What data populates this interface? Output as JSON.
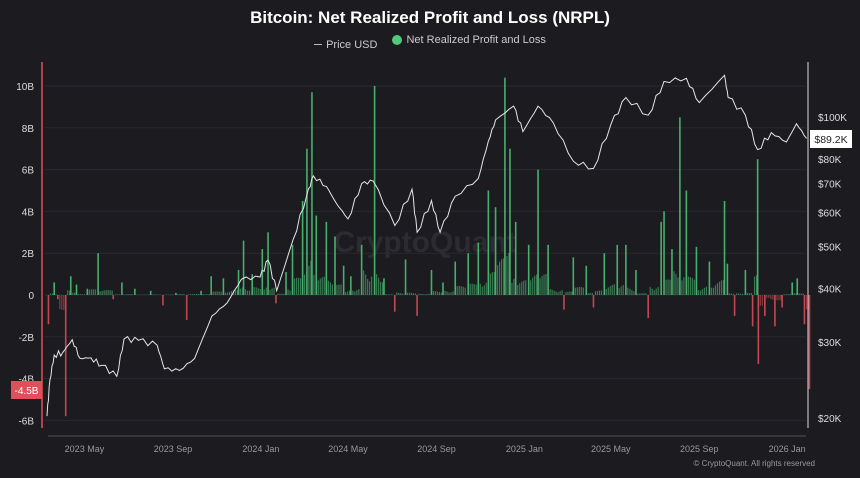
{
  "chart_data": {
    "type": "bar+line",
    "title": "Bitcoin: Net Realized Profit and Loss (NRPL)",
    "legend": [
      {
        "name": "Price USD",
        "color": "#d0d0d0",
        "marker": "line"
      },
      {
        "name": "Net Realized Profit and Loss",
        "color": "#4fc97a",
        "marker": "dot"
      }
    ],
    "legend_position": "top-center",
    "colors": {
      "profit": "#4fc97a",
      "loss": "#e0505a",
      "price": "#e6e6e6",
      "background": "#1c1b20"
    },
    "x_ticks": [
      "2023 May",
      "2023 Sep",
      "2024 Jan",
      "2024 May",
      "2024 Sep",
      "2025 Jan",
      "2025 May",
      "2025 Sep",
      "2026 Jan"
    ],
    "x_tick_dates": [
      "2023-05-01",
      "2023-09-01",
      "2024-01-01",
      "2024-05-01",
      "2024-09-01",
      "2025-01-01",
      "2025-05-01",
      "2025-09-01",
      "2026-01-01"
    ],
    "x_range": [
      "2023-03-10",
      "2026-02-05"
    ],
    "left_axis": {
      "ticks": [
        "10B",
        "8B",
        "6B",
        "4B",
        "2B",
        "0",
        "-2B",
        "-4B",
        "-6B"
      ],
      "tick_values": [
        10,
        8,
        6,
        4,
        2,
        0,
        -2,
        -4,
        -6
      ],
      "range": [
        -6.4,
        10.8
      ],
      "unit": "B USD"
    },
    "right_axis": {
      "scale": "log",
      "ticks": [
        "$100K",
        "$80K",
        "$70K",
        "$60K",
        "$50K",
        "$40K",
        "$30K",
        "$20K"
      ],
      "tick_values": [
        100000,
        80000,
        70000,
        60000,
        50000,
        40000,
        30000,
        20000
      ],
      "range": [
        19000,
        125000
      ]
    },
    "current_price_label": "$89.2K",
    "current_nrpl_label": "-4.5B",
    "grid": true,
    "watermark": "CryptoQuant",
    "price": [
      [
        "2023-03-10",
        20200
      ],
      [
        "2023-03-14",
        24500
      ],
      [
        "2023-03-20",
        28000
      ],
      [
        "2023-04-01",
        28400
      ],
      [
        "2023-04-14",
        30400
      ],
      [
        "2023-04-25",
        27500
      ],
      [
        "2023-05-10",
        27600
      ],
      [
        "2023-05-25",
        26500
      ],
      [
        "2023-06-15",
        25000
      ],
      [
        "2023-06-25",
        30500
      ],
      [
        "2023-07-15",
        30300
      ],
      [
        "2023-08-10",
        29500
      ],
      [
        "2023-08-20",
        26000
      ],
      [
        "2023-09-10",
        25800
      ],
      [
        "2023-10-01",
        27500
      ],
      [
        "2023-10-25",
        34500
      ],
      [
        "2023-11-15",
        37000
      ],
      [
        "2023-12-05",
        42000
      ],
      [
        "2023-12-31",
        42500
      ],
      [
        "2024-01-11",
        46500
      ],
      [
        "2024-01-23",
        39500
      ],
      [
        "2024-02-15",
        52000
      ],
      [
        "2024-03-05",
        66000
      ],
      [
        "2024-03-14",
        73000
      ],
      [
        "2024-04-01",
        69000
      ],
      [
        "2024-04-15",
        63000
      ],
      [
        "2024-05-01",
        58000
      ],
      [
        "2024-05-20",
        70000
      ],
      [
        "2024-06-05",
        71000
      ],
      [
        "2024-07-05",
        56000
      ],
      [
        "2024-07-29",
        68000
      ],
      [
        "2024-08-05",
        54000
      ],
      [
        "2024-08-25",
        64000
      ],
      [
        "2024-09-06",
        54000
      ],
      [
        "2024-09-27",
        65500
      ],
      [
        "2024-10-29",
        72000
      ],
      [
        "2024-11-12",
        88000
      ],
      [
        "2024-11-22",
        98500
      ],
      [
        "2024-12-17",
        106000
      ],
      [
        "2024-12-30",
        92500
      ],
      [
        "2025-01-20",
        106000
      ],
      [
        "2025-02-10",
        97000
      ],
      [
        "2025-03-10",
        79000
      ],
      [
        "2025-04-07",
        76000
      ],
      [
        "2025-05-01",
        96000
      ],
      [
        "2025-05-22",
        111000
      ],
      [
        "2025-06-22",
        101000
      ],
      [
        "2025-07-14",
        121000
      ],
      [
        "2025-08-14",
        123000
      ],
      [
        "2025-09-01",
        108000
      ],
      [
        "2025-10-06",
        125000
      ],
      [
        "2025-10-11",
        111000
      ],
      [
        "2025-11-04",
        101000
      ],
      [
        "2025-11-21",
        84000
      ],
      [
        "2025-12-10",
        92000
      ],
      [
        "2025-12-31",
        87500
      ],
      [
        "2026-01-14",
        96500
      ],
      [
        "2026-01-28",
        89200
      ]
    ],
    "nrpl": [
      [
        "2023-03-12",
        -1.4
      ],
      [
        "2023-03-20",
        0.6
      ],
      [
        "2023-03-25",
        -0.2
      ],
      [
        "2023-04-05",
        -5.8
      ],
      [
        "2023-04-12",
        0.9
      ],
      [
        "2023-04-20",
        0.5
      ],
      [
        "2023-05-05",
        0.3
      ],
      [
        "2023-05-20",
        2.0
      ],
      [
        "2023-06-10",
        -0.2
      ],
      [
        "2023-06-22",
        0.6
      ],
      [
        "2023-07-10",
        0.3
      ],
      [
        "2023-08-01",
        0.2
      ],
      [
        "2023-08-18",
        -0.5
      ],
      [
        "2023-09-05",
        0.1
      ],
      [
        "2023-09-20",
        -1.2
      ],
      [
        "2023-10-10",
        0.2
      ],
      [
        "2023-10-24",
        0.9
      ],
      [
        "2023-11-10",
        0.8
      ],
      [
        "2023-12-01",
        1.2
      ],
      [
        "2023-12-08",
        2.6
      ],
      [
        "2023-12-20",
        1.0
      ],
      [
        "2024-01-03",
        2.2
      ],
      [
        "2024-01-11",
        3.0
      ],
      [
        "2024-01-22",
        -0.4
      ],
      [
        "2024-02-05",
        1.1
      ],
      [
        "2024-02-14",
        2.4
      ],
      [
        "2024-02-28",
        4.5
      ],
      [
        "2024-03-05",
        7.0
      ],
      [
        "2024-03-12",
        9.7
      ],
      [
        "2024-03-18",
        3.8
      ],
      [
        "2024-04-01",
        3.5
      ],
      [
        "2024-04-13",
        2.8
      ],
      [
        "2024-04-25",
        1.4
      ],
      [
        "2024-05-05",
        0.9
      ],
      [
        "2024-05-20",
        2.4
      ],
      [
        "2024-06-07",
        10.0
      ],
      [
        "2024-06-20",
        0.8
      ],
      [
        "2024-07-05",
        -0.8
      ],
      [
        "2024-07-20",
        1.7
      ],
      [
        "2024-08-05",
        -1.0
      ],
      [
        "2024-08-25",
        1.2
      ],
      [
        "2024-09-10",
        0.6
      ],
      [
        "2024-09-27",
        1.6
      ],
      [
        "2024-10-15",
        2.0
      ],
      [
        "2024-10-29",
        2.5
      ],
      [
        "2024-11-12",
        5.0
      ],
      [
        "2024-11-22",
        4.2
      ],
      [
        "2024-12-05",
        10.4
      ],
      [
        "2024-12-12",
        7.0
      ],
      [
        "2024-12-20",
        3.5
      ],
      [
        "2025-01-07",
        2.4
      ],
      [
        "2025-01-20",
        6.0
      ],
      [
        "2025-02-03",
        2.4
      ],
      [
        "2025-02-25",
        -0.7
      ],
      [
        "2025-03-10",
        1.8
      ],
      [
        "2025-03-28",
        1.4
      ],
      [
        "2025-04-07",
        -0.6
      ],
      [
        "2025-04-22",
        2.0
      ],
      [
        "2025-05-10",
        2.4
      ],
      [
        "2025-05-22",
        2.4
      ],
      [
        "2025-06-05",
        1.2
      ],
      [
        "2025-06-22",
        -1.1
      ],
      [
        "2025-07-10",
        3.5
      ],
      [
        "2025-07-14",
        4.0
      ],
      [
        "2025-07-25",
        2.2
      ],
      [
        "2025-08-05",
        8.5
      ],
      [
        "2025-08-14",
        5.0
      ],
      [
        "2025-08-28",
        2.3
      ],
      [
        "2025-09-15",
        1.6
      ],
      [
        "2025-10-06",
        4.5
      ],
      [
        "2025-10-10",
        1.5
      ],
      [
        "2025-10-20",
        -1.0
      ],
      [
        "2025-11-04",
        1.2
      ],
      [
        "2025-11-14",
        -1.5
      ],
      [
        "2025-11-21",
        6.5
      ],
      [
        "2025-11-22",
        -3.3
      ],
      [
        "2025-12-01",
        -1.0
      ],
      [
        "2025-12-15",
        -1.5
      ],
      [
        "2025-12-25",
        -0.6
      ],
      [
        "2026-01-08",
        0.6
      ],
      [
        "2026-01-15",
        0.8
      ],
      [
        "2026-01-25",
        -1.4
      ],
      [
        "2026-02-01",
        -4.5
      ]
    ]
  },
  "footer": {
    "copyright": "© CryptoQuant. All rights reserved"
  }
}
